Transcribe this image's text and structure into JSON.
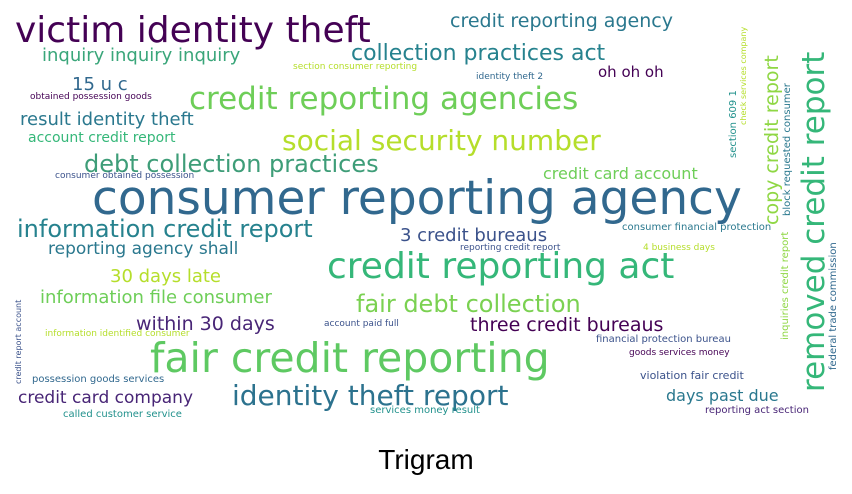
{
  "caption": "Trigram",
  "palette": {
    "purple": "#440154",
    "indigo": "#482576",
    "blue": "#31688e",
    "slate": "#3b528b",
    "teal": "#21918c",
    "green": "#35b779",
    "lime": "#6ece58",
    "yellow": "#b5de2b"
  },
  "words": [
    {
      "text": "consumer reporting agency",
      "color": "#31688e"
    },
    {
      "text": "fair credit reporting",
      "color": "#5ec962"
    },
    {
      "text": "credit reporting act",
      "color": "#35b779"
    },
    {
      "text": "victim identity theft",
      "color": "#440154"
    },
    {
      "text": "removed credit report",
      "color": "#35b779"
    },
    {
      "text": "credit reporting agencies",
      "color": "#6ece58"
    },
    {
      "text": "social security number",
      "color": "#b5de2b"
    },
    {
      "text": "identity theft report",
      "color": "#2c728e"
    },
    {
      "text": "information credit report",
      "color": "#26828e"
    },
    {
      "text": "debt collection practices",
      "color": "#3e9d78"
    },
    {
      "text": "collection practices act",
      "color": "#26828e"
    },
    {
      "text": "fair debt collection",
      "color": "#7ad151"
    },
    {
      "text": "credit reporting agency",
      "color": "#2a788e"
    },
    {
      "text": "copy credit report",
      "color": "#8fd744"
    },
    {
      "text": "inquiry inquiry inquiry",
      "color": "#3aa67a"
    },
    {
      "text": "result identity theft",
      "color": "#2a788e"
    },
    {
      "text": "information file consumer",
      "color": "#6ece58"
    },
    {
      "text": "three credit bureaus",
      "color": "#440154"
    },
    {
      "text": "3 credit bureaus",
      "color": "#3b528b"
    },
    {
      "text": "within 30 days",
      "color": "#482576"
    },
    {
      "text": "credit card company",
      "color": "#482576"
    },
    {
      "text": "30 days late",
      "color": "#b5de2b"
    },
    {
      "text": "reporting agency shall",
      "color": "#2a788e"
    },
    {
      "text": "credit card account",
      "color": "#6ece58"
    },
    {
      "text": "days past due",
      "color": "#2a788e"
    },
    {
      "text": "15 u c",
      "color": "#31688e"
    },
    {
      "text": "oh oh oh",
      "color": "#440154"
    },
    {
      "text": "account credit report",
      "color": "#35b779"
    },
    {
      "text": "section 609 1",
      "color": "#21918c"
    },
    {
      "text": "block requested consumer",
      "color": "#2a788e"
    },
    {
      "text": "inquiries credit report",
      "color": "#8fd744"
    },
    {
      "text": "federal trade commission",
      "color": "#31688e"
    },
    {
      "text": "check services company",
      "color": "#b5de2b"
    },
    {
      "text": "consumer financial protection",
      "color": "#2a788e"
    },
    {
      "text": "financial protection bureau",
      "color": "#3b528b"
    },
    {
      "text": "goods services money",
      "color": "#440154"
    },
    {
      "text": "violation fair credit",
      "color": "#3b528b"
    },
    {
      "text": "reporting act section",
      "color": "#482576"
    },
    {
      "text": "services money result",
      "color": "#21918c"
    },
    {
      "text": "called customer service",
      "color": "#21918c"
    },
    {
      "text": "possession goods services",
      "color": "#31688e"
    },
    {
      "text": "credit report account",
      "color": "#3b528b"
    },
    {
      "text": "information identified consumer",
      "color": "#b5de2b"
    },
    {
      "text": "account paid full",
      "color": "#3b528b"
    },
    {
      "text": "reporting credit report",
      "color": "#3b528b"
    },
    {
      "text": "4 business days",
      "color": "#b5de2b"
    },
    {
      "text": "consumer obtained possession",
      "color": "#3b528b"
    },
    {
      "text": "obtained possession goods",
      "color": "#440154"
    },
    {
      "text": "section consumer reporting",
      "color": "#b5de2b"
    },
    {
      "text": "identity theft 2",
      "color": "#31688e"
    }
  ]
}
